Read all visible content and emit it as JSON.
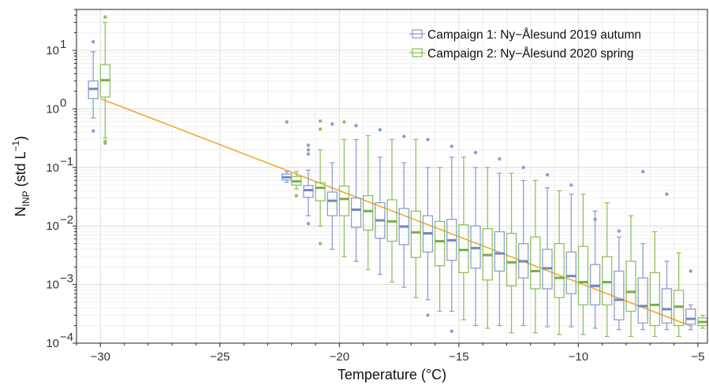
{
  "chart_data": {
    "type": "box",
    "xlabel": "Temperature (°C)",
    "ylabel": {
      "base": "N",
      "sub": "INP",
      "unit": " (std L",
      "sup": "−1",
      "close": ")"
    },
    "xlim": [
      -31,
      -4.6
    ],
    "ylim": [
      0.0001,
      50
    ],
    "y_scale": "log",
    "x_ticks": [
      -30,
      -25,
      -20,
      -15,
      -10,
      -5
    ],
    "x_tick_labels": [
      "−30",
      "−25",
      "−20",
      "−15",
      "−10",
      "−5"
    ],
    "y_ticks": [
      {
        "value": 0.0001,
        "base": "10",
        "exp": "−4"
      },
      {
        "value": 0.001,
        "base": "10",
        "exp": "−3"
      },
      {
        "value": 0.01,
        "base": "10",
        "exp": "−2"
      },
      {
        "value": 0.1,
        "base": "10",
        "exp": "−1"
      },
      {
        "value": 1,
        "base": "10",
        "exp": "0"
      },
      {
        "value": 10,
        "base": "10",
        "exp": "1"
      }
    ],
    "grid": true,
    "legend_position": "top-right",
    "colors": {
      "series1": "#8c9fd0",
      "series1_median": "#7286c4",
      "series2": "#8fc160",
      "series2_median": "#78ad46",
      "fit": "#f5a623"
    },
    "series": [
      {
        "name": "Campaign 1: Ny−Ålesund 2019 autumn",
        "boxes": [
          {
            "x": -30.3,
            "q1": 1.5,
            "median": 2.2,
            "q3": 3.0,
            "whisker_low": 0.7,
            "whisker_high": 9.5,
            "outliers": [
              14,
              0.42
            ]
          },
          {
            "x": -22.2,
            "q1": 0.061,
            "median": 0.068,
            "q3": 0.077,
            "whisker_low": 0.056,
            "whisker_high": 0.085,
            "outliers": [
              0.6
            ]
          },
          {
            "x": -21.3,
            "q1": 0.031,
            "median": 0.041,
            "q3": 0.049,
            "whisker_low": 0.015,
            "whisker_high": 0.09,
            "outliers": [
              0.2,
              0.17,
              0.24,
              0.011
            ]
          },
          {
            "x": -20.3,
            "q1": 0.015,
            "median": 0.027,
            "q3": 0.038,
            "whisker_low": 0.004,
            "whisker_high": 0.12,
            "outliers": [
              0.55
            ]
          },
          {
            "x": -19.3,
            "q1": 0.0095,
            "median": 0.019,
            "q3": 0.03,
            "whisker_low": 0.0025,
            "whisker_high": 0.3,
            "outliers": [
              0.52
            ]
          },
          {
            "x": -18.3,
            "q1": 0.0062,
            "median": 0.0125,
            "q3": 0.025,
            "whisker_low": 0.0015,
            "whisker_high": 0.15,
            "outliers": [
              0.44
            ]
          },
          {
            "x": -17.3,
            "q1": 0.0048,
            "median": 0.0098,
            "q3": 0.02,
            "whisker_low": 0.0009,
            "whisker_high": 0.12,
            "outliers": [
              0.34
            ]
          },
          {
            "x": -16.3,
            "q1": 0.0036,
            "median": 0.0075,
            "q3": 0.015,
            "whisker_low": 0.00055,
            "whisker_high": 0.1,
            "outliers": [
              0.3,
              0.0003
            ]
          },
          {
            "x": -15.3,
            "q1": 0.0026,
            "median": 0.0057,
            "q3": 0.013,
            "whisker_low": 0.00035,
            "whisker_high": 0.15,
            "outliers": [
              0.23,
              0.00016
            ]
          },
          {
            "x": -14.3,
            "q1": 0.0019,
            "median": 0.0042,
            "q3": 0.01,
            "whisker_low": 0.0002,
            "whisker_high": 0.1,
            "outliers": [
              0.18
            ]
          },
          {
            "x": -13.3,
            "q1": 0.0017,
            "median": 0.0034,
            "q3": 0.008,
            "whisker_low": 0.0002,
            "whisker_high": 0.08,
            "outliers": [
              0.14
            ]
          },
          {
            "x": -12.3,
            "q1": 0.0013,
            "median": 0.0025,
            "q3": 0.005,
            "whisker_low": 0.0002,
            "whisker_high": 0.06,
            "outliers": [
              0.1
            ]
          },
          {
            "x": -11.3,
            "q1": 0.00085,
            "median": 0.0019,
            "q3": 0.004,
            "whisker_low": 0.00019,
            "whisker_high": 0.045,
            "outliers": [
              0.075
            ]
          },
          {
            "x": -10.3,
            "q1": 0.0007,
            "median": 0.0014,
            "q3": 0.0036,
            "whisker_low": 0.00019,
            "whisker_high": 0.035,
            "outliers": [
              0.05
            ]
          },
          {
            "x": -9.3,
            "q1": 0.00045,
            "median": 0.00095,
            "q3": 0.0022,
            "whisker_low": 0.00018,
            "whisker_high": 0.018,
            "outliers": [
              0.013
            ]
          },
          {
            "x": -8.3,
            "q1": 0.00025,
            "median": 0.00055,
            "q3": 0.0017,
            "whisker_low": 0.00017,
            "whisker_high": 0.0065,
            "outliers": [
              0.0082
            ]
          },
          {
            "x": -7.3,
            "q1": 0.00022,
            "median": 0.00043,
            "q3": 0.0013,
            "whisker_low": 0.00017,
            "whisker_high": 0.005,
            "outliers": [
              0.085
            ]
          },
          {
            "x": -6.3,
            "q1": 0.00022,
            "median": 0.00038,
            "q3": 0.00085,
            "whisker_low": 0.00017,
            "whisker_high": 0.0025,
            "outliers": [
              0.035
            ]
          },
          {
            "x": -5.3,
            "q1": 0.00021,
            "median": 0.00026,
            "q3": 0.00038,
            "whisker_low": 0.00017,
            "whisker_high": 0.00045,
            "outliers": [
              0.0017
            ]
          }
        ]
      },
      {
        "name": "Campaign 2: Ny−Ålesund 2020 spring",
        "boxes": [
          {
            "x": -29.8,
            "q1": 1.6,
            "median": 3.1,
            "q3": 5.7,
            "whisker_low": 0.32,
            "whisker_high": 30,
            "outliers": [
              37,
              0.28,
              0.26
            ]
          },
          {
            "x": -21.8,
            "q1": 0.05,
            "median": 0.058,
            "q3": 0.07,
            "whisker_low": 0.043,
            "whisker_high": 0.085,
            "outliers": [
              0.033
            ]
          },
          {
            "x": -20.8,
            "q1": 0.027,
            "median": 0.045,
            "q3": 0.055,
            "whisker_low": 0.01,
            "whisker_high": 0.2,
            "outliers": [
              0.62,
              0.45,
              0.005
            ]
          },
          {
            "x": -19.8,
            "q1": 0.015,
            "median": 0.029,
            "q3": 0.048,
            "whisker_low": 0.003,
            "whisker_high": 0.3,
            "outliers": [
              0.6
            ]
          },
          {
            "x": -18.8,
            "q1": 0.0085,
            "median": 0.018,
            "q3": 0.033,
            "whisker_low": 0.0018,
            "whisker_high": 0.35,
            "outliers": []
          },
          {
            "x": -17.8,
            "q1": 0.0055,
            "median": 0.012,
            "q3": 0.028,
            "whisker_low": 0.0011,
            "whisker_high": 0.3,
            "outliers": []
          },
          {
            "x": -16.8,
            "q1": 0.0029,
            "median": 0.0078,
            "q3": 0.018,
            "whisker_low": 0.0006,
            "whisker_high": 0.3,
            "outliers": []
          },
          {
            "x": -15.8,
            "q1": 0.0021,
            "median": 0.0055,
            "q3": 0.012,
            "whisker_low": 0.00035,
            "whisker_high": 0.1,
            "outliers": []
          },
          {
            "x": -14.8,
            "q1": 0.0016,
            "median": 0.0039,
            "q3": 0.0105,
            "whisker_low": 0.00025,
            "whisker_high": 0.15,
            "outliers": []
          },
          {
            "x": -13.8,
            "q1": 0.0012,
            "median": 0.0032,
            "q3": 0.009,
            "whisker_low": 0.00018,
            "whisker_high": 0.1,
            "outliers": []
          },
          {
            "x": -12.8,
            "q1": 0.00095,
            "median": 0.0024,
            "q3": 0.0075,
            "whisker_low": 0.00015,
            "whisker_high": 0.08,
            "outliers": []
          },
          {
            "x": -11.8,
            "q1": 0.00085,
            "median": 0.0017,
            "q3": 0.0065,
            "whisker_low": 0.00015,
            "whisker_high": 0.06,
            "outliers": []
          },
          {
            "x": -10.8,
            "q1": 0.0006,
            "median": 0.0013,
            "q3": 0.005,
            "whisker_low": 0.00014,
            "whisker_high": 0.04,
            "outliers": []
          },
          {
            "x": -9.8,
            "q1": 0.00045,
            "median": 0.0011,
            "q3": 0.0045,
            "whisker_low": 0.00014,
            "whisker_high": 0.035,
            "outliers": []
          },
          {
            "x": -8.8,
            "q1": 0.00045,
            "median": 0.0011,
            "q3": 0.003,
            "whisker_low": 0.00013,
            "whisker_high": 0.025,
            "outliers": []
          },
          {
            "x": -7.8,
            "q1": 0.00035,
            "median": 0.00075,
            "q3": 0.0025,
            "whisker_low": 0.00013,
            "whisker_high": 0.015,
            "outliers": []
          },
          {
            "x": -6.8,
            "q1": 0.0002,
            "median": 0.00045,
            "q3": 0.0016,
            "whisker_low": 0.00013,
            "whisker_high": 0.008,
            "outliers": []
          },
          {
            "x": -5.8,
            "q1": 0.0002,
            "median": 0.00042,
            "q3": 0.0008,
            "whisker_low": 0.00013,
            "whisker_high": 0.0035,
            "outliers": []
          },
          {
            "x": -4.8,
            "q1": 0.0002,
            "median": 0.00023,
            "q3": 0.00027,
            "whisker_low": 0.00018,
            "whisker_high": 0.0003,
            "outliers": []
          }
        ]
      }
    ],
    "fit_line": {
      "points": [
        [
          -30,
          1.5
        ],
        [
          -5.2,
          0.00019
        ]
      ]
    }
  }
}
